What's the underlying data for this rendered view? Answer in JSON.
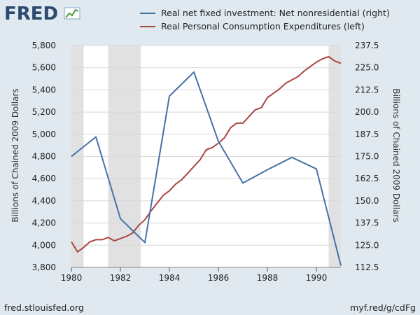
{
  "logo": {
    "text": "FRED"
  },
  "footer": {
    "left": "fred.stlouisfed.org",
    "right": "myf.red/g/cdFg"
  },
  "colors": {
    "investment": "#4572a7",
    "consumption": "#aa4643",
    "recession": "#e1e1e1",
    "background": "#e1e9f0"
  },
  "chart_data": {
    "type": "line",
    "title": "",
    "xlabel": "",
    "ylabel_left": "Billions of Chained 2009 Dollars",
    "ylabel_right": "Billions of Chained 2009 Dollars",
    "xlim": [
      1980.0,
      1991.0
    ],
    "ylim_left": [
      3800,
      5800
    ],
    "ylim_right": [
      112.5,
      237.5
    ],
    "x_ticks": [
      {
        "value": 1980,
        "label": "1980"
      },
      {
        "value": 1982,
        "label": "1982"
      },
      {
        "value": 1984,
        "label": "1984"
      },
      {
        "value": 1986,
        "label": "1986"
      },
      {
        "value": 1988,
        "label": "1988"
      },
      {
        "value": 1990,
        "label": "1990"
      }
    ],
    "y_ticks_left": [
      {
        "value": 3800,
        "label": "3,800"
      },
      {
        "value": 4000,
        "label": "4,000"
      },
      {
        "value": 4200,
        "label": "4,200"
      },
      {
        "value": 4400,
        "label": "4,400"
      },
      {
        "value": 4600,
        "label": "4,600"
      },
      {
        "value": 4800,
        "label": "4,800"
      },
      {
        "value": 5000,
        "label": "5,000"
      },
      {
        "value": 5200,
        "label": "5,200"
      },
      {
        "value": 5400,
        "label": "5,400"
      },
      {
        "value": 5600,
        "label": "5,600"
      },
      {
        "value": 5800,
        "label": "5,800"
      }
    ],
    "y_ticks_right": [
      {
        "value": 112.5,
        "label": "112.5"
      },
      {
        "value": 125.0,
        "label": "125.0"
      },
      {
        "value": 137.5,
        "label": "137.5"
      },
      {
        "value": 150.0,
        "label": "150.0"
      },
      {
        "value": 162.5,
        "label": "162.5"
      },
      {
        "value": 175.0,
        "label": "175.0"
      },
      {
        "value": 187.5,
        "label": "187.5"
      },
      {
        "value": 200.0,
        "label": "200.0"
      },
      {
        "value": 212.5,
        "label": "212.5"
      },
      {
        "value": 225.0,
        "label": "225.0"
      },
      {
        "value": 237.5,
        "label": "237.5"
      }
    ],
    "grid": "horizontal",
    "legend_position": "top",
    "recessions": [
      {
        "start": 1980.0,
        "end": 1980.5
      },
      {
        "start": 1981.5,
        "end": 1982.83
      },
      {
        "start": 1990.5,
        "end": 1991.0
      }
    ],
    "series": [
      {
        "name": "Real net fixed investment: Net nonresidential (right)",
        "axis": "right",
        "x": [
          1980,
          1981,
          1982,
          1983,
          1984,
          1985,
          1986,
          1987,
          1988,
          1989,
          1990,
          1991
        ],
        "y": [
          175.0,
          186.0,
          140.0,
          126.5,
          209.0,
          222.5,
          183.5,
          160.0,
          167.5,
          174.5,
          168.0,
          113.5
        ]
      },
      {
        "name": "Real Personal Consumption Expenditures (left)",
        "axis": "left",
        "x": [
          1980.0,
          1980.25,
          1980.5,
          1980.75,
          1981.0,
          1981.25,
          1981.5,
          1981.75,
          1982.0,
          1982.25,
          1982.5,
          1982.75,
          1983.0,
          1983.25,
          1983.5,
          1983.75,
          1984.0,
          1984.25,
          1984.5,
          1984.75,
          1985.0,
          1985.25,
          1985.5,
          1985.75,
          1986.0,
          1986.25,
          1986.5,
          1986.75,
          1987.0,
          1987.25,
          1987.5,
          1987.75,
          1988.0,
          1988.25,
          1988.5,
          1988.75,
          1989.0,
          1989.25,
          1989.5,
          1989.75,
          1990.0,
          1990.25,
          1990.5,
          1990.75,
          1991.0
        ],
        "y": [
          4030,
          3940,
          3980,
          4030,
          4050,
          4050,
          4070,
          4040,
          4060,
          4080,
          4110,
          4180,
          4230,
          4310,
          4380,
          4450,
          4490,
          4550,
          4590,
          4650,
          4710,
          4770,
          4860,
          4880,
          4920,
          4970,
          5060,
          5100,
          5100,
          5160,
          5220,
          5240,
          5330,
          5370,
          5410,
          5460,
          5490,
          5520,
          5570,
          5610,
          5650,
          5680,
          5700,
          5660,
          5640
        ]
      }
    ]
  }
}
